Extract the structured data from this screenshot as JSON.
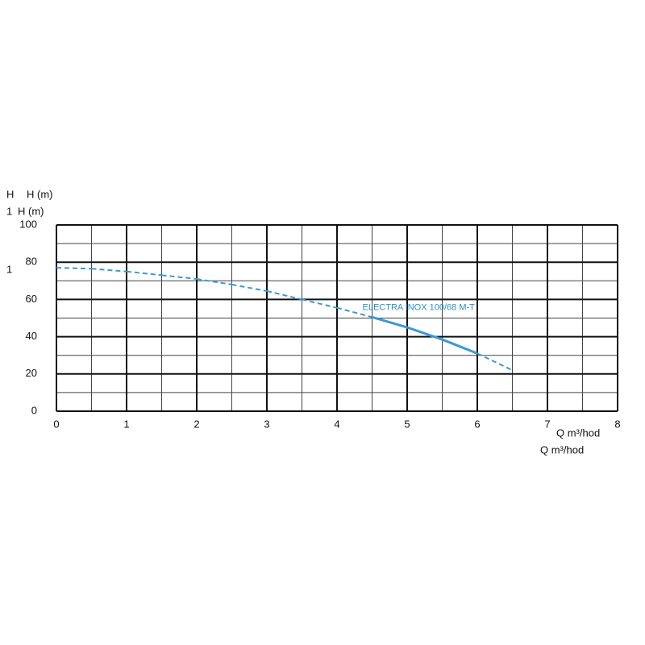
{
  "chart_data": {
    "type": "line",
    "y_label": "H (m)",
    "x_label": "Q m³/hod",
    "ghost_texts": [
      "H",
      "H (m)",
      "1",
      "1",
      "Q m³/hod"
    ],
    "xlim": [
      0,
      8
    ],
    "ylim": [
      0,
      100
    ],
    "xticks": [
      0,
      1,
      2,
      3,
      4,
      5,
      6,
      7,
      8
    ],
    "yticks": [
      0,
      20,
      40,
      60,
      80,
      100
    ],
    "x_minor_grid": [
      0.5,
      1.5,
      2.5,
      3.5,
      4.5,
      5.5,
      6.5,
      7.5
    ],
    "y_minor_grid": [
      10,
      30,
      50,
      70,
      90
    ],
    "grid": true,
    "series": [
      {
        "name": "ELECTRA INOX 100/68 M-T",
        "color": "#3a9bd0",
        "x": [
          0,
          0.5,
          1,
          1.5,
          2,
          2.5,
          3,
          3.5,
          4,
          4.5,
          5,
          5.5,
          6,
          6.5
        ],
        "values": [
          77,
          76.5,
          75,
          73,
          71,
          68,
          64.5,
          60,
          55.5,
          50.5,
          45,
          38.5,
          31,
          22
        ],
        "segment_styles": [
          "dashed",
          "dashed",
          "dashed",
          "dashed",
          "dashed",
          "dashed",
          "dashed",
          "dashed",
          "dashed",
          "solid",
          "solid",
          "solid",
          "dashed"
        ]
      }
    ]
  }
}
